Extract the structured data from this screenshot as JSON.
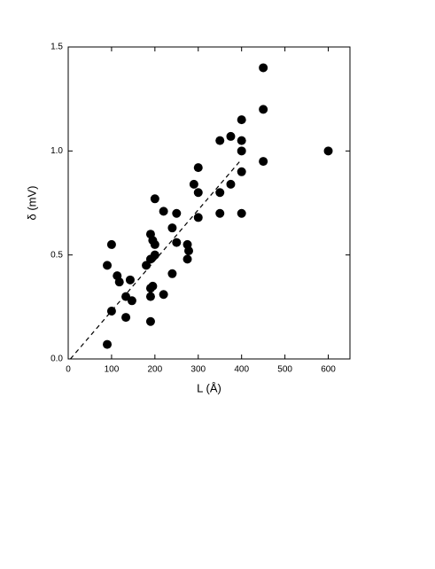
{
  "chart_data": {
    "type": "scatter",
    "xlabel": "L (Å)",
    "ylabel": "δ (mV)",
    "xlim": [
      0,
      650
    ],
    "ylim": [
      0,
      1.5
    ],
    "xticks": [
      0,
      100,
      200,
      300,
      400,
      500,
      600
    ],
    "yticks": [
      {
        "value": 0,
        "label": "0.0"
      },
      {
        "value": 0.5,
        "label": "0.5"
      },
      {
        "value": 1.0,
        "label": "1.0"
      },
      {
        "value": 1.5,
        "label": "1.5"
      }
    ],
    "color": "#000000",
    "x": [
      450,
      450,
      450,
      600,
      400,
      400,
      400,
      400,
      400,
      375,
      350,
      375,
      350,
      350,
      300,
      290,
      300,
      300,
      275,
      278,
      275,
      250,
      220,
      240,
      250,
      200,
      190,
      195,
      200,
      200,
      190,
      180,
      240,
      220,
      195,
      190,
      190,
      190,
      143,
      147,
      133,
      133,
      100,
      90,
      113,
      118,
      100,
      90
    ],
    "y": [
      1.4,
      1.2,
      0.95,
      1.0,
      1.15,
      1.05,
      1.0,
      0.9,
      0.7,
      1.07,
      1.05,
      0.84,
      0.8,
      0.7,
      0.92,
      0.84,
      0.8,
      0.68,
      0.55,
      0.52,
      0.48,
      0.7,
      0.71,
      0.63,
      0.56,
      0.77,
      0.6,
      0.57,
      0.55,
      0.5,
      0.48,
      0.45,
      0.41,
      0.31,
      0.35,
      0.34,
      0.3,
      0.18,
      0.38,
      0.28,
      0.3,
      0.2,
      0.55,
      0.45,
      0.4,
      0.37,
      0.23,
      0.07
    ],
    "fit": {
      "x": [
        5,
        400
      ],
      "y": [
        0,
        0.96
      ]
    }
  }
}
